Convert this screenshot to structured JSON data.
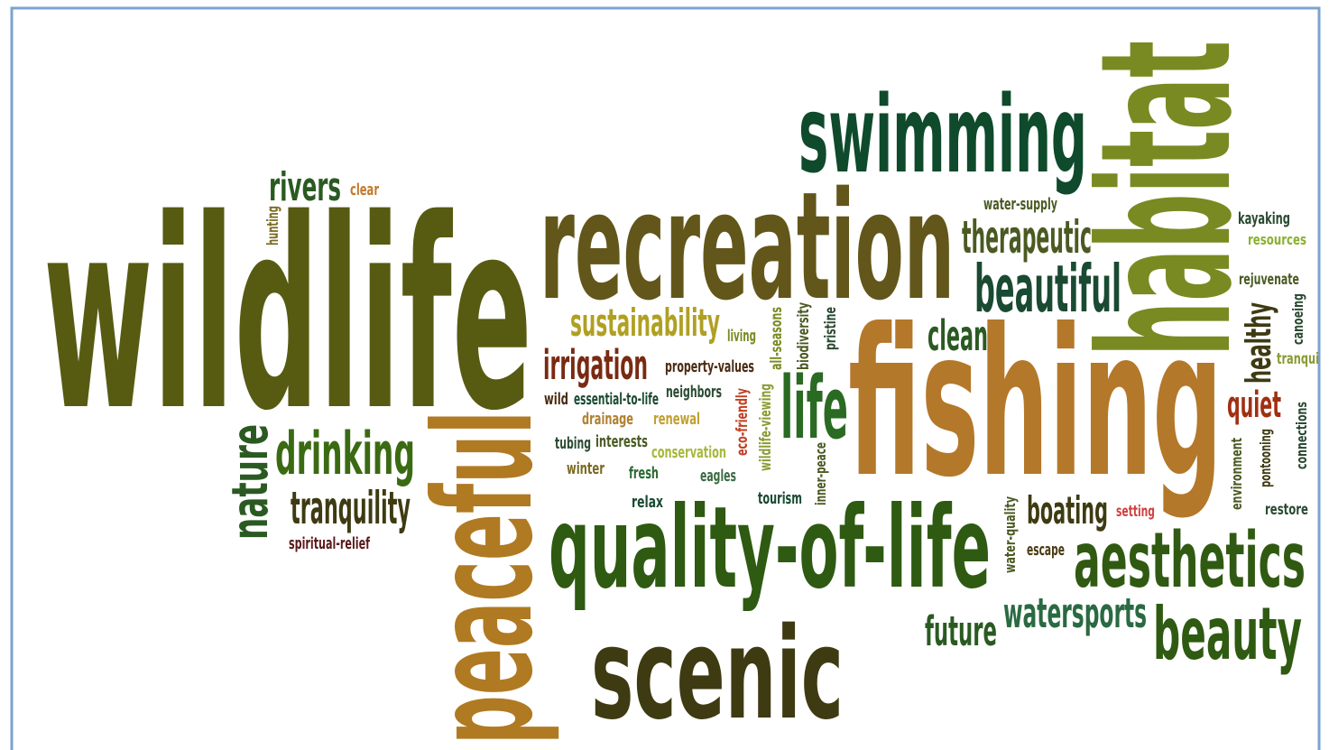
{
  "words": [
    "wildlife",
    "recreation",
    "swimming",
    "fishing",
    "quality-of-life",
    "scenic",
    "aesthetics",
    "beauty",
    "beautiful",
    "therapeutic",
    "clean",
    "life",
    "sustainability",
    "irrigation",
    "rivers",
    "clear",
    "drinking",
    "tranquility",
    "spiritual-relief",
    "property-values",
    "neighbors",
    "wild",
    "essential-to-life",
    "drainage",
    "renewal",
    "tubing",
    "interests",
    "conservation",
    "winter",
    "fresh",
    "eagles",
    "relax",
    "tourism",
    "living",
    "water-supply",
    "kayaking",
    "resources",
    "rejuvenate",
    "quiet",
    "boating",
    "setting",
    "escape",
    "future",
    "watersports",
    "restore",
    "habitat",
    "peaceful",
    "nature",
    "hunting",
    "all-seasons",
    "biodiversity",
    "pristine",
    "eco-friendly",
    "wildlife-viewing",
    "inner-peace",
    "water-quality",
    "healthy",
    "canoeing",
    "tranqui",
    "environment",
    "pontooning",
    "connections"
  ]
}
